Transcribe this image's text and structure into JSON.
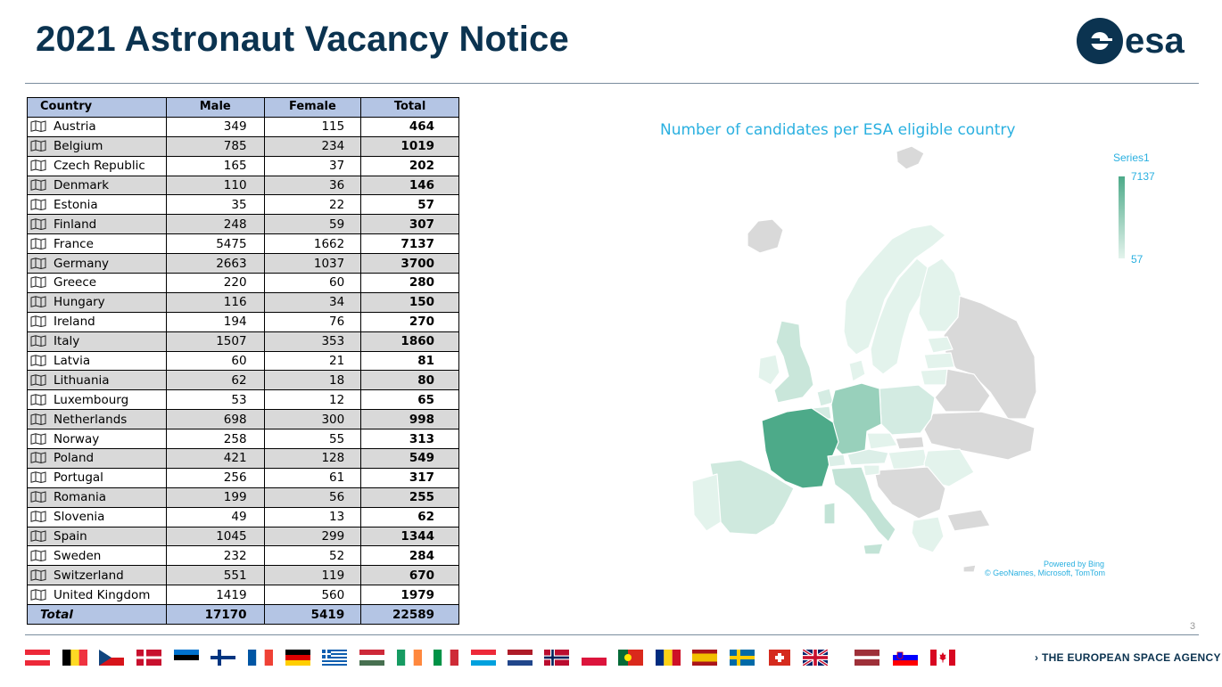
{
  "header": {
    "title": "2021 Astronaut Vacancy Notice",
    "logo_text": "esa"
  },
  "table": {
    "columns": [
      "Country",
      "Male",
      "Female",
      "Total"
    ],
    "rows": [
      [
        "Austria",
        "349",
        "115",
        "464"
      ],
      [
        "Belgium",
        "785",
        "234",
        "1019"
      ],
      [
        "Czech Republic",
        "165",
        "37",
        "202"
      ],
      [
        "Denmark",
        "110",
        "36",
        "146"
      ],
      [
        "Estonia",
        "35",
        "22",
        "57"
      ],
      [
        "Finland",
        "248",
        "59",
        "307"
      ],
      [
        "France",
        "5475",
        "1662",
        "7137"
      ],
      [
        "Germany",
        "2663",
        "1037",
        "3700"
      ],
      [
        "Greece",
        "220",
        "60",
        "280"
      ],
      [
        "Hungary",
        "116",
        "34",
        "150"
      ],
      [
        "Ireland",
        "194",
        "76",
        "270"
      ],
      [
        "Italy",
        "1507",
        "353",
        "1860"
      ],
      [
        "Latvia",
        "60",
        "21",
        "81"
      ],
      [
        "Lithuania",
        "62",
        "18",
        "80"
      ],
      [
        "Luxembourg",
        "53",
        "12",
        "65"
      ],
      [
        "Netherlands",
        "698",
        "300",
        "998"
      ],
      [
        "Norway",
        "258",
        "55",
        "313"
      ],
      [
        "Poland",
        "421",
        "128",
        "549"
      ],
      [
        "Portugal",
        "256",
        "61",
        "317"
      ],
      [
        "Romania",
        "199",
        "56",
        "255"
      ],
      [
        "Slovenia",
        "49",
        "13",
        "62"
      ],
      [
        "Spain",
        "1045",
        "299",
        "1344"
      ],
      [
        "Sweden",
        "232",
        "52",
        "284"
      ],
      [
        "Switzerland",
        "551",
        "119",
        "670"
      ],
      [
        "United Kingdom",
        "1419",
        "560",
        "1979"
      ]
    ],
    "total": {
      "label": "Total",
      "male": "17170",
      "female": "5419",
      "total": "22589"
    },
    "row_icon": "map-icon"
  },
  "map": {
    "title": "Number of candidates per ESA eligible country",
    "legend_title": "Series1",
    "legend_max": "7137",
    "legend_min": "57",
    "credit_line1": "Powered by Bing",
    "credit_line2": "© GeoNames, Microsoft, TomTom",
    "color_max": "#4daa89",
    "color_min": "#e3f3ec",
    "color_noneligible": "#d9d9d9"
  },
  "footer": {
    "page_number": "3",
    "agency": "THE EUROPEAN SPACE AGENCY",
    "flags": [
      "Austria",
      "Belgium",
      "Czech Republic",
      "Denmark",
      "Estonia",
      "Finland",
      "France",
      "Germany",
      "Greece",
      "Hungary",
      "Ireland",
      "Italy",
      "Luxembourg",
      "Netherlands",
      "Norway",
      "Poland",
      "Portugal",
      "Romania",
      "Spain",
      "Sweden",
      "Switzerland",
      "United Kingdom",
      "Latvia",
      "Slovenia",
      "Canada"
    ]
  },
  "colors": {
    "title": "#0b3350",
    "header_fill": "#b4c5e4",
    "stripe": "#d9d9d9",
    "map_text": "#2ab0e0"
  }
}
